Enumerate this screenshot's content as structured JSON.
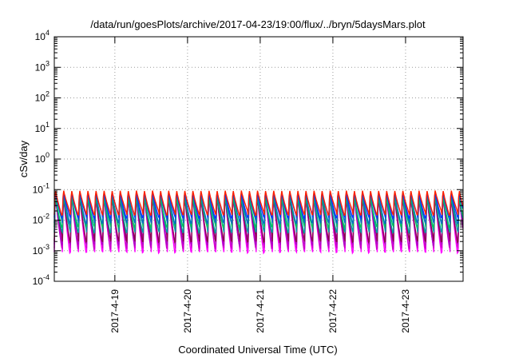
{
  "chart_data": {
    "type": "line",
    "title": "/data/run/goesPlots/archive/2017-04-23/19:00/flux/../bryn/5daysMars.plot",
    "xlabel": "Coordinated Universal Time (UTC)",
    "ylabel": "cSv/day",
    "y_scale": "log",
    "ylim": [
      0.0001,
      10000
    ],
    "y_ticks": [
      {
        "base": "10",
        "exp": "-4",
        "value": 0.0001
      },
      {
        "base": "10",
        "exp": "-3",
        "value": 0.001
      },
      {
        "base": "10",
        "exp": "-2",
        "value": 0.01
      },
      {
        "base": "10",
        "exp": "-1",
        "value": 0.1
      },
      {
        "base": "10",
        "exp": "0",
        "value": 1
      },
      {
        "base": "10",
        "exp": "1",
        "value": 10
      },
      {
        "base": "10",
        "exp": "2",
        "value": 100
      },
      {
        "base": "10",
        "exp": "3",
        "value": 1000
      },
      {
        "base": "10",
        "exp": "4",
        "value": 10000
      }
    ],
    "xlim": [
      "2017-04-18T04:00",
      "2017-04-23T19:00"
    ],
    "x_ticks": [
      "2017-4-19",
      "2017-4-20",
      "2017-4-21",
      "2017-4-22",
      "2017-4-23"
    ],
    "x_tick_dates": [
      "2017-04-19",
      "2017-04-20",
      "2017-04-21",
      "2017-04-22",
      "2017-04-23"
    ],
    "grid": true,
    "cycles_per_day": 9,
    "series": [
      {
        "color": "#ff00ff",
        "peak": 0.1,
        "min": 0.0009
      },
      {
        "color": "#cc00cc",
        "peak": 0.09,
        "min": 0.0012
      },
      {
        "color": "#b000c8",
        "peak": 0.085,
        "min": 0.0016
      },
      {
        "color": "#8b0a50",
        "peak": 0.08,
        "min": 0.002
      },
      {
        "color": "#00a0a0",
        "peak": 0.075,
        "min": 0.004
      },
      {
        "color": "#00c060",
        "peak": 0.07,
        "min": 0.006
      },
      {
        "color": "#0070c0",
        "peak": 0.09,
        "min": 0.008
      },
      {
        "color": "#1030ff",
        "peak": 0.1,
        "min": 0.012
      },
      {
        "color": "#ff2000",
        "peak": 0.11,
        "min": 0.015
      }
    ]
  }
}
